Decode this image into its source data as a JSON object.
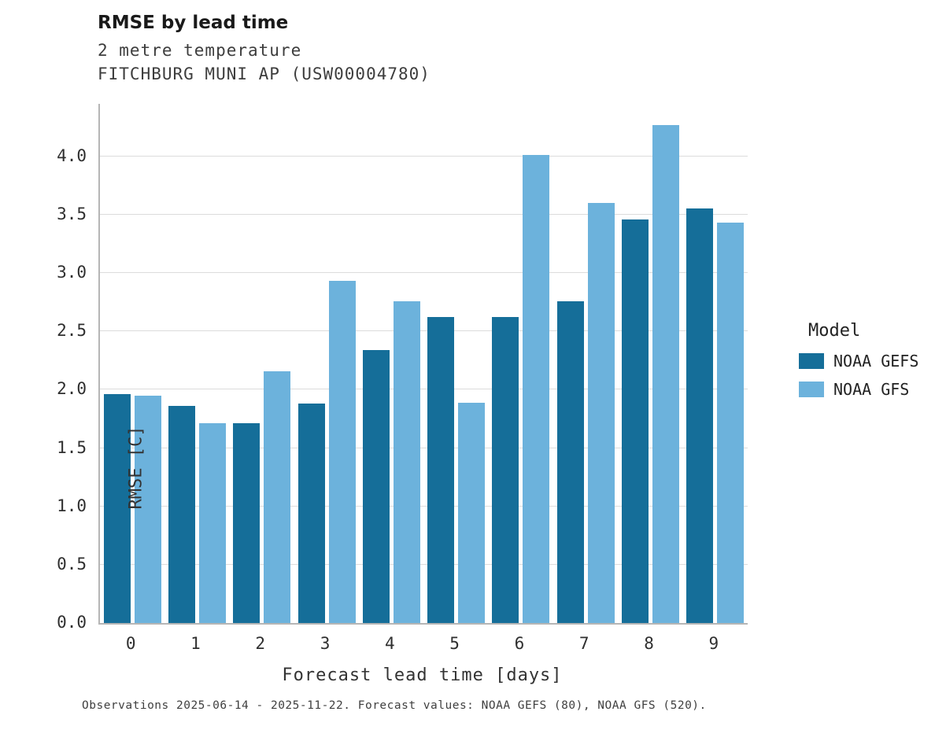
{
  "header": {
    "title": "RMSE by lead time",
    "subtitle1": "2 metre temperature",
    "subtitle2": "FITCHBURG MUNI AP (USW00004780)"
  },
  "footer": {
    "note": "Observations 2025-06-14 - 2025-11-22. Forecast values: NOAA GEFS (80), NOAA GFS (520)."
  },
  "legend": {
    "title": "Model",
    "entries": [
      {
        "label": "NOAA GEFS",
        "color": "#156e99"
      },
      {
        "label": "NOAA GFS",
        "color": "#6cb2dc"
      }
    ]
  },
  "chart_data": {
    "type": "bar",
    "title": "RMSE by lead time",
    "categories": [
      "0",
      "1",
      "2",
      "3",
      "4",
      "5",
      "6",
      "7",
      "8",
      "9"
    ],
    "series": [
      {
        "name": "NOAA GEFS",
        "color": "#156e99",
        "values": [
          1.96,
          1.86,
          1.71,
          1.88,
          2.34,
          2.62,
          2.62,
          2.76,
          3.46,
          3.55
        ]
      },
      {
        "name": "NOAA GFS",
        "color": "#6cb2dc",
        "values": [
          1.95,
          1.71,
          2.16,
          2.93,
          2.76,
          1.89,
          4.01,
          3.6,
          4.27,
          3.43
        ]
      }
    ],
    "xlabel": "Forecast lead time [days]",
    "ylabel": "RMSE [C]",
    "ylim": [
      0,
      4.45
    ],
    "yticks": [
      0.0,
      0.5,
      1.0,
      1.5,
      2.0,
      2.5,
      3.0,
      3.5,
      4.0
    ],
    "grid": true,
    "legend_position": "right"
  }
}
